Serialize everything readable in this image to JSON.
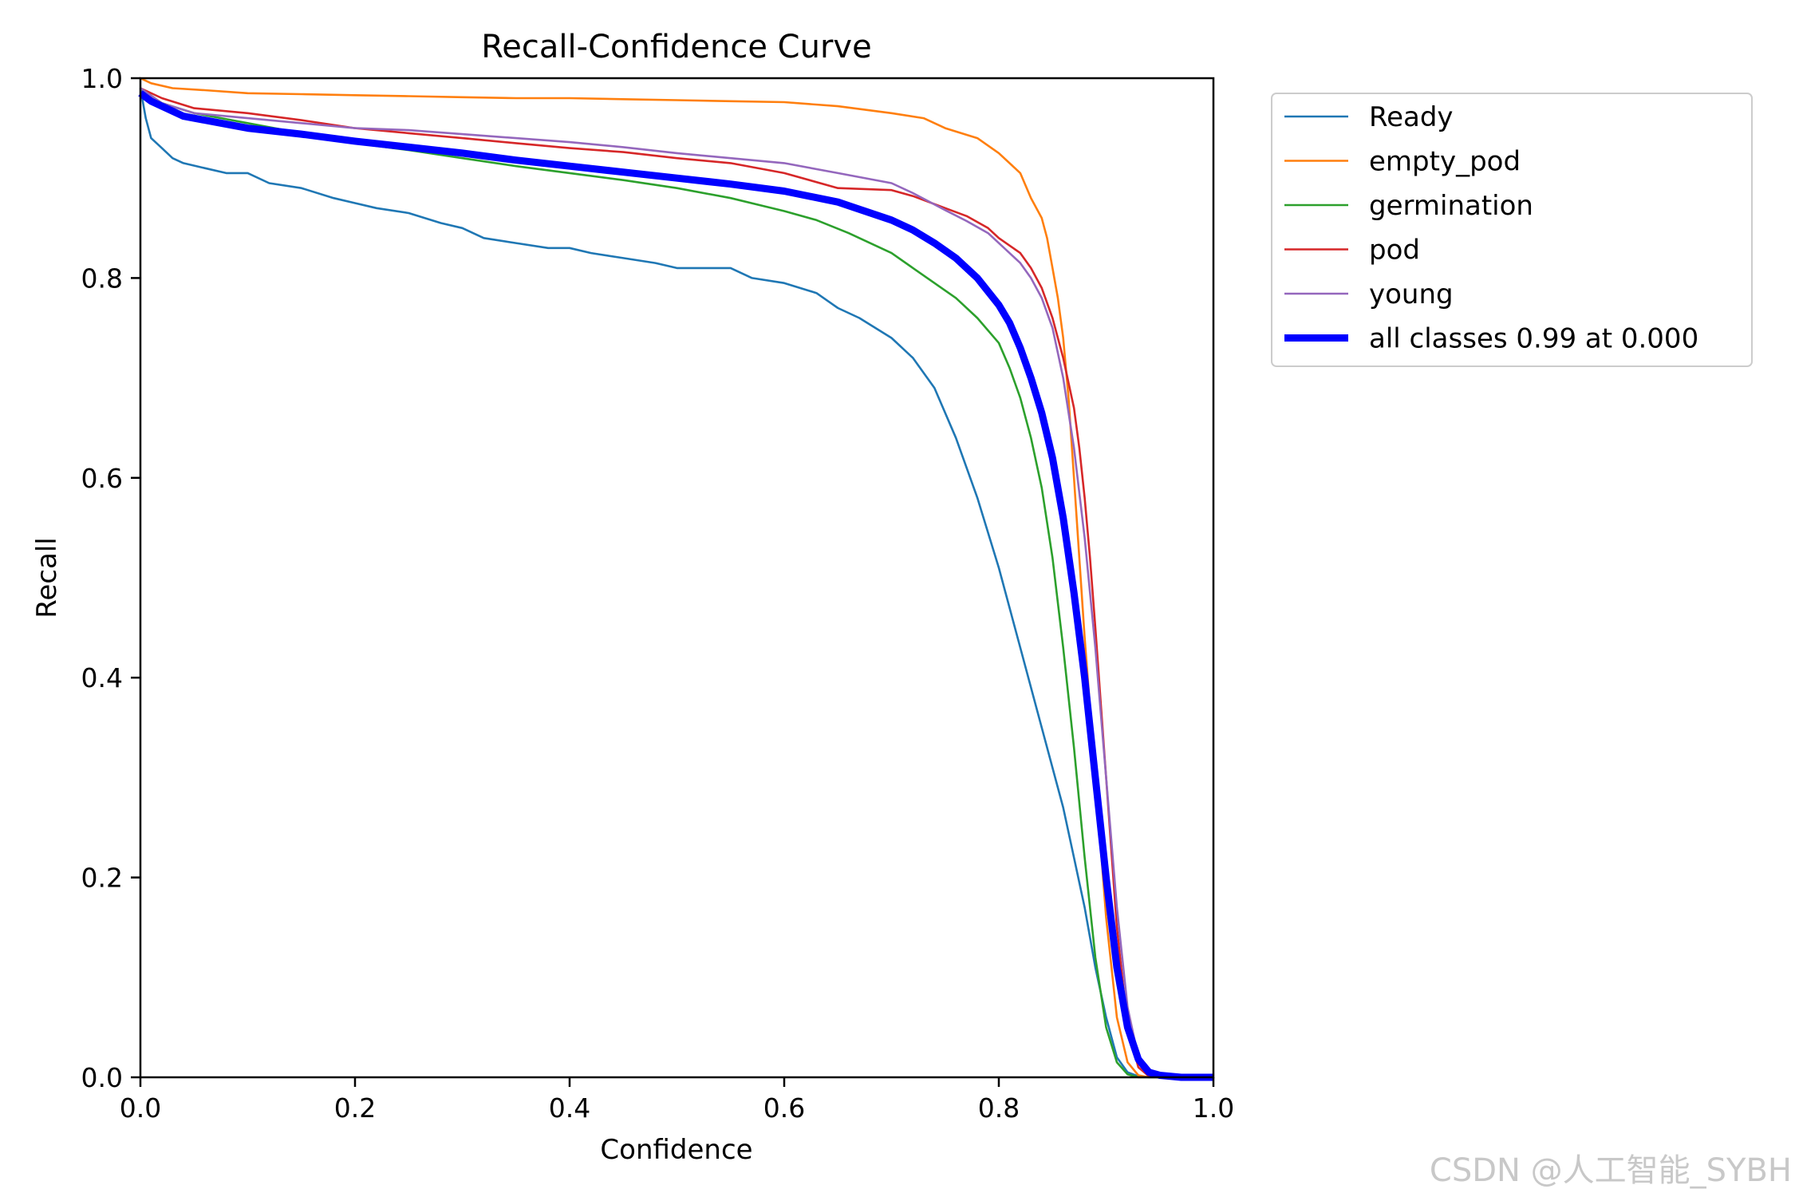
{
  "chart_data": {
    "type": "line",
    "title": "Recall-Confidence Curve",
    "xlabel": "Confidence",
    "ylabel": "Recall",
    "xlim": [
      0.0,
      1.0
    ],
    "ylim": [
      0.0,
      1.0
    ],
    "xticks": [
      "0.0",
      "0.2",
      "0.4",
      "0.6",
      "0.8",
      "1.0"
    ],
    "yticks": [
      "0.0",
      "0.2",
      "0.4",
      "0.6",
      "0.8",
      "1.0"
    ],
    "grid": false,
    "legend_position": "outside top-right",
    "series": [
      {
        "name": "Ready",
        "color": "#1f77b4",
        "width": "thin",
        "x": [
          0.0,
          0.005,
          0.01,
          0.02,
          0.03,
          0.04,
          0.06,
          0.08,
          0.1,
          0.12,
          0.15,
          0.18,
          0.2,
          0.22,
          0.25,
          0.28,
          0.3,
          0.32,
          0.35,
          0.38,
          0.4,
          0.42,
          0.45,
          0.48,
          0.5,
          0.55,
          0.57,
          0.6,
          0.63,
          0.65,
          0.67,
          0.7,
          0.72,
          0.74,
          0.76,
          0.78,
          0.8,
          0.82,
          0.84,
          0.86,
          0.87,
          0.88,
          0.89,
          0.9,
          0.91,
          0.92,
          0.93,
          0.94,
          0.95,
          1.0
        ],
        "y": [
          0.99,
          0.96,
          0.94,
          0.93,
          0.92,
          0.915,
          0.91,
          0.905,
          0.905,
          0.895,
          0.89,
          0.88,
          0.875,
          0.87,
          0.865,
          0.855,
          0.85,
          0.84,
          0.835,
          0.83,
          0.83,
          0.825,
          0.82,
          0.815,
          0.81,
          0.81,
          0.8,
          0.795,
          0.785,
          0.77,
          0.76,
          0.74,
          0.72,
          0.69,
          0.64,
          0.58,
          0.51,
          0.43,
          0.35,
          0.27,
          0.22,
          0.17,
          0.11,
          0.06,
          0.02,
          0.005,
          0.001,
          0.0,
          0.0,
          0.0
        ]
      },
      {
        "name": "empty_pod",
        "color": "#ff7f0e",
        "width": "thin",
        "x": [
          0.0,
          0.01,
          0.03,
          0.06,
          0.1,
          0.15,
          0.2,
          0.25,
          0.3,
          0.35,
          0.4,
          0.45,
          0.5,
          0.55,
          0.6,
          0.65,
          0.7,
          0.73,
          0.75,
          0.78,
          0.8,
          0.82,
          0.83,
          0.84,
          0.845,
          0.85,
          0.855,
          0.86,
          0.865,
          0.87,
          0.875,
          0.88,
          0.89,
          0.9,
          0.91,
          0.92,
          0.93,
          0.94,
          1.0
        ],
        "y": [
          1.0,
          0.995,
          0.99,
          0.988,
          0.985,
          0.984,
          0.983,
          0.982,
          0.981,
          0.98,
          0.98,
          0.979,
          0.978,
          0.977,
          0.976,
          0.972,
          0.965,
          0.96,
          0.95,
          0.94,
          0.925,
          0.905,
          0.88,
          0.86,
          0.84,
          0.81,
          0.78,
          0.74,
          0.68,
          0.6,
          0.52,
          0.44,
          0.3,
          0.16,
          0.06,
          0.015,
          0.002,
          0.0,
          0.0
        ]
      },
      {
        "name": "germination",
        "color": "#2ca02c",
        "width": "thin",
        "x": [
          0.0,
          0.02,
          0.05,
          0.1,
          0.15,
          0.2,
          0.25,
          0.3,
          0.35,
          0.4,
          0.45,
          0.5,
          0.55,
          0.6,
          0.63,
          0.66,
          0.7,
          0.72,
          0.74,
          0.76,
          0.78,
          0.8,
          0.81,
          0.82,
          0.83,
          0.84,
          0.85,
          0.86,
          0.87,
          0.88,
          0.89,
          0.9,
          0.91,
          0.92,
          0.93,
          0.94,
          1.0
        ],
        "y": [
          0.99,
          0.975,
          0.965,
          0.955,
          0.945,
          0.935,
          0.928,
          0.92,
          0.912,
          0.905,
          0.898,
          0.89,
          0.88,
          0.867,
          0.858,
          0.845,
          0.825,
          0.81,
          0.795,
          0.78,
          0.76,
          0.735,
          0.71,
          0.68,
          0.64,
          0.59,
          0.52,
          0.43,
          0.33,
          0.22,
          0.12,
          0.05,
          0.015,
          0.003,
          0.0,
          0.0,
          0.0
        ]
      },
      {
        "name": "pod",
        "color": "#d62728",
        "width": "thin",
        "x": [
          0.0,
          0.02,
          0.05,
          0.1,
          0.15,
          0.2,
          0.25,
          0.3,
          0.35,
          0.4,
          0.45,
          0.5,
          0.55,
          0.6,
          0.65,
          0.7,
          0.72,
          0.75,
          0.77,
          0.79,
          0.8,
          0.82,
          0.83,
          0.84,
          0.85,
          0.86,
          0.87,
          0.875,
          0.88,
          0.885,
          0.89,
          0.9,
          0.91,
          0.92,
          0.93,
          0.94,
          0.95,
          1.0
        ],
        "y": [
          0.99,
          0.98,
          0.97,
          0.965,
          0.958,
          0.95,
          0.945,
          0.94,
          0.935,
          0.93,
          0.926,
          0.92,
          0.915,
          0.905,
          0.89,
          0.888,
          0.882,
          0.87,
          0.862,
          0.85,
          0.84,
          0.825,
          0.81,
          0.79,
          0.76,
          0.72,
          0.67,
          0.63,
          0.58,
          0.52,
          0.45,
          0.3,
          0.15,
          0.05,
          0.01,
          0.001,
          0.0,
          0.0
        ]
      },
      {
        "name": "young",
        "color": "#9467bd",
        "width": "thin",
        "x": [
          0.0,
          0.02,
          0.05,
          0.1,
          0.15,
          0.2,
          0.25,
          0.3,
          0.35,
          0.4,
          0.45,
          0.5,
          0.55,
          0.6,
          0.65,
          0.7,
          0.72,
          0.75,
          0.77,
          0.79,
          0.8,
          0.82,
          0.83,
          0.84,
          0.85,
          0.86,
          0.87,
          0.88,
          0.89,
          0.9,
          0.91,
          0.92,
          0.93,
          0.94,
          0.95,
          1.0
        ],
        "y": [
          0.99,
          0.975,
          0.965,
          0.96,
          0.955,
          0.95,
          0.948,
          0.944,
          0.94,
          0.936,
          0.931,
          0.925,
          0.92,
          0.915,
          0.905,
          0.895,
          0.885,
          0.868,
          0.857,
          0.845,
          0.835,
          0.815,
          0.8,
          0.78,
          0.75,
          0.7,
          0.63,
          0.54,
          0.43,
          0.3,
          0.17,
          0.07,
          0.02,
          0.003,
          0.0,
          0.0
        ]
      },
      {
        "name": "all classes 0.99 at 0.000",
        "color": "#0000ff",
        "width": "thick",
        "x": [
          0.0,
          0.01,
          0.02,
          0.04,
          0.07,
          0.1,
          0.15,
          0.2,
          0.25,
          0.3,
          0.35,
          0.4,
          0.45,
          0.5,
          0.55,
          0.6,
          0.65,
          0.7,
          0.72,
          0.74,
          0.76,
          0.78,
          0.8,
          0.81,
          0.82,
          0.83,
          0.84,
          0.85,
          0.86,
          0.87,
          0.88,
          0.89,
          0.9,
          0.91,
          0.92,
          0.93,
          0.94,
          0.95,
          0.97,
          1.0
        ],
        "y": [
          0.985,
          0.977,
          0.972,
          0.962,
          0.956,
          0.95,
          0.944,
          0.937,
          0.931,
          0.925,
          0.918,
          0.912,
          0.906,
          0.9,
          0.894,
          0.887,
          0.876,
          0.858,
          0.848,
          0.835,
          0.82,
          0.8,
          0.773,
          0.755,
          0.73,
          0.7,
          0.665,
          0.62,
          0.56,
          0.485,
          0.4,
          0.3,
          0.2,
          0.11,
          0.05,
          0.018,
          0.005,
          0.002,
          0.0,
          0.0
        ]
      }
    ]
  },
  "watermark": "CSDN @人工智能_SYBH"
}
